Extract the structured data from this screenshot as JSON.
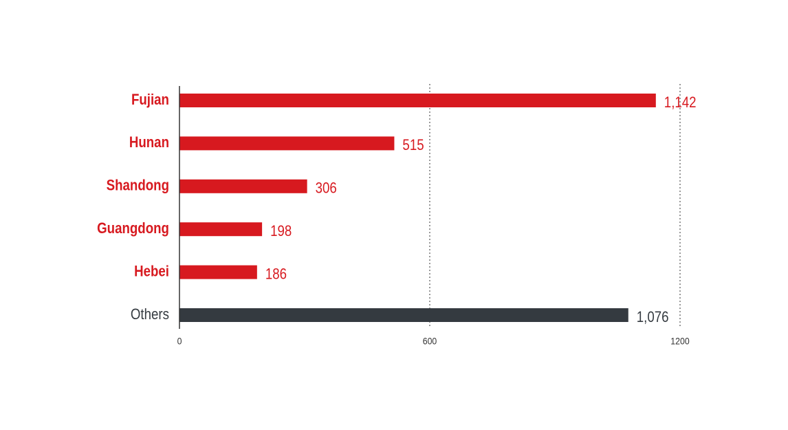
{
  "chart_data": {
    "type": "hbar",
    "categories": [
      "Fujian",
      "Hunan",
      "Shandong",
      "Guangdong",
      "Hebei",
      "Others"
    ],
    "values": [
      1142,
      515,
      306,
      198,
      186,
      1076
    ],
    "value_labels": [
      "1,142",
      "515",
      "306",
      "198",
      "186",
      "1,076"
    ],
    "colors": [
      "#d7191f",
      "#d7191f",
      "#d7191f",
      "#d7191f",
      "#d7191f",
      "#343a40"
    ],
    "xlim": [
      0,
      1200
    ],
    "xticks": [
      0,
      600,
      1200
    ],
    "grid": true
  }
}
